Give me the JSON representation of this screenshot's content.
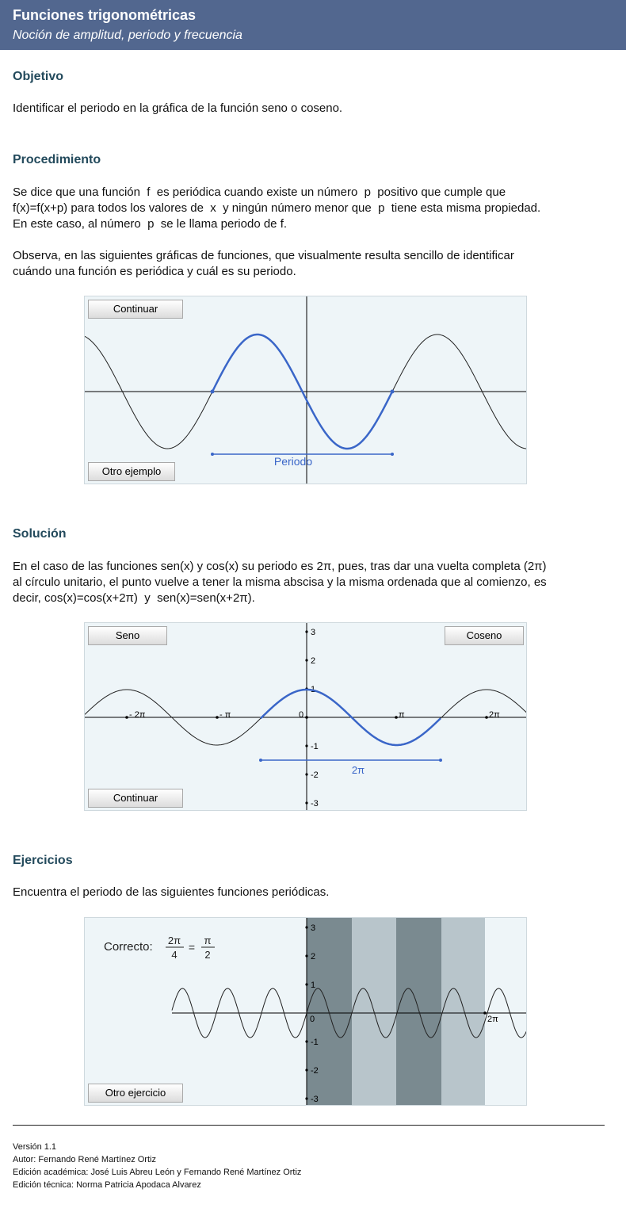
{
  "header": {
    "title": "Funciones trigonométricas",
    "subtitle": "Noción de amplitud, periodo y frecuencia"
  },
  "objetivo": {
    "heading": "Objetivo",
    "text": "Identificar el periodo en la gráfica de la función seno o coseno."
  },
  "procedimiento": {
    "heading": "Procedimiento",
    "line1": "Se dice que una función  f  es periódica cuando existe un número  p  positivo que cumple que",
    "line2": "f(x)=f(x+p) para todos los valores de  x  y ningún número menor que  p  tiene esta misma propiedad.",
    "line3": "En este caso, al número  p  se le llama periodo de f.",
    "line4": "Observa, en las siguientes gráficas de funciones, que visualmente resulta sencillo de identificar",
    "line5": "cuándo una función es periódica y cuál es su periodo."
  },
  "panel1": {
    "continue_label": "Continuar",
    "other_label": "Otro ejemplo",
    "period_label": "Periodo",
    "curve_color": "#222222",
    "highlight_color": "#3a66c8"
  },
  "solucion": {
    "heading": "Solución",
    "line1": "En el caso de las funciones sen(x) y cos(x) su periodo es 2π, pues, tras dar una vuelta completa (2π)",
    "line2": "al círculo unitario, el punto vuelve a tener la misma abscisa y la misma ordenada que al comienzo, es",
    "line3": "decir, cos(x)=cos(x+2π)  y  sen(x)=sen(x+2π)."
  },
  "panel2": {
    "sine_label": "Seno",
    "cosine_label": "Coseno",
    "continue_label": "Continuar",
    "period_label": "2π",
    "x_ticks": [
      "- 2π",
      "- π",
      "0",
      "π",
      "2π"
    ],
    "y_ticks": [
      "3",
      "2",
      "1",
      "-1",
      "-2",
      "-3"
    ]
  },
  "ejercicios": {
    "heading": "Ejercicios",
    "text": "Encuentra el periodo de las siguientes funciones periódicas."
  },
  "panel3": {
    "correct_label": "Correcto:",
    "frac1_num": "2π",
    "frac1_den": "4",
    "equals": "=",
    "frac2_num": "π",
    "frac2_den": "2",
    "other_label": "Otro ejercicio",
    "x_ticks": [
      "0",
      "2π"
    ],
    "y_ticks": [
      "3",
      "2",
      "1",
      "-1",
      "-2",
      "-3"
    ],
    "band_dark": "#7a8a90",
    "band_light": "#b8c5cb"
  },
  "footer": {
    "version": "Versión 1.1",
    "author": "Autor: Fernando René Martínez Ortiz",
    "academic": "Edición académica: José Luis Abreu León y Fernando René Martínez Ortiz",
    "technical": "Edición técnica: Norma Patricia Apodaca Alvarez"
  }
}
